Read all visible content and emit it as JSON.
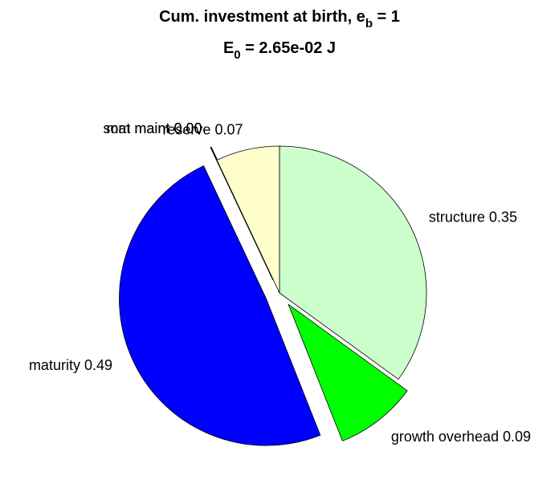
{
  "chart_data": {
    "type": "pie",
    "title": {
      "text": "Cum. investment at birth, e",
      "subscript": "b",
      "suffix": " = 1"
    },
    "subtitle": {
      "text": "E",
      "subscript": "0",
      "suffix": " = 2.65e-02 J"
    },
    "categories": [
      "structure",
      "growth overhead",
      "maturity",
      "som maint",
      "mat maint",
      "reserve"
    ],
    "values": [
      0.35,
      0.09,
      0.49,
      0,
      0,
      0.07
    ],
    "value_labels": [
      "0.35",
      "0.09",
      "0.49",
      "0.00",
      "0.00",
      "0.07"
    ],
    "colors": [
      "#ccffcc",
      "#00ff00",
      "#0000ff",
      "#ffffff",
      "#000000",
      "#ffffcc"
    ],
    "explode": [
      false,
      true,
      true,
      true,
      true,
      false
    ]
  }
}
